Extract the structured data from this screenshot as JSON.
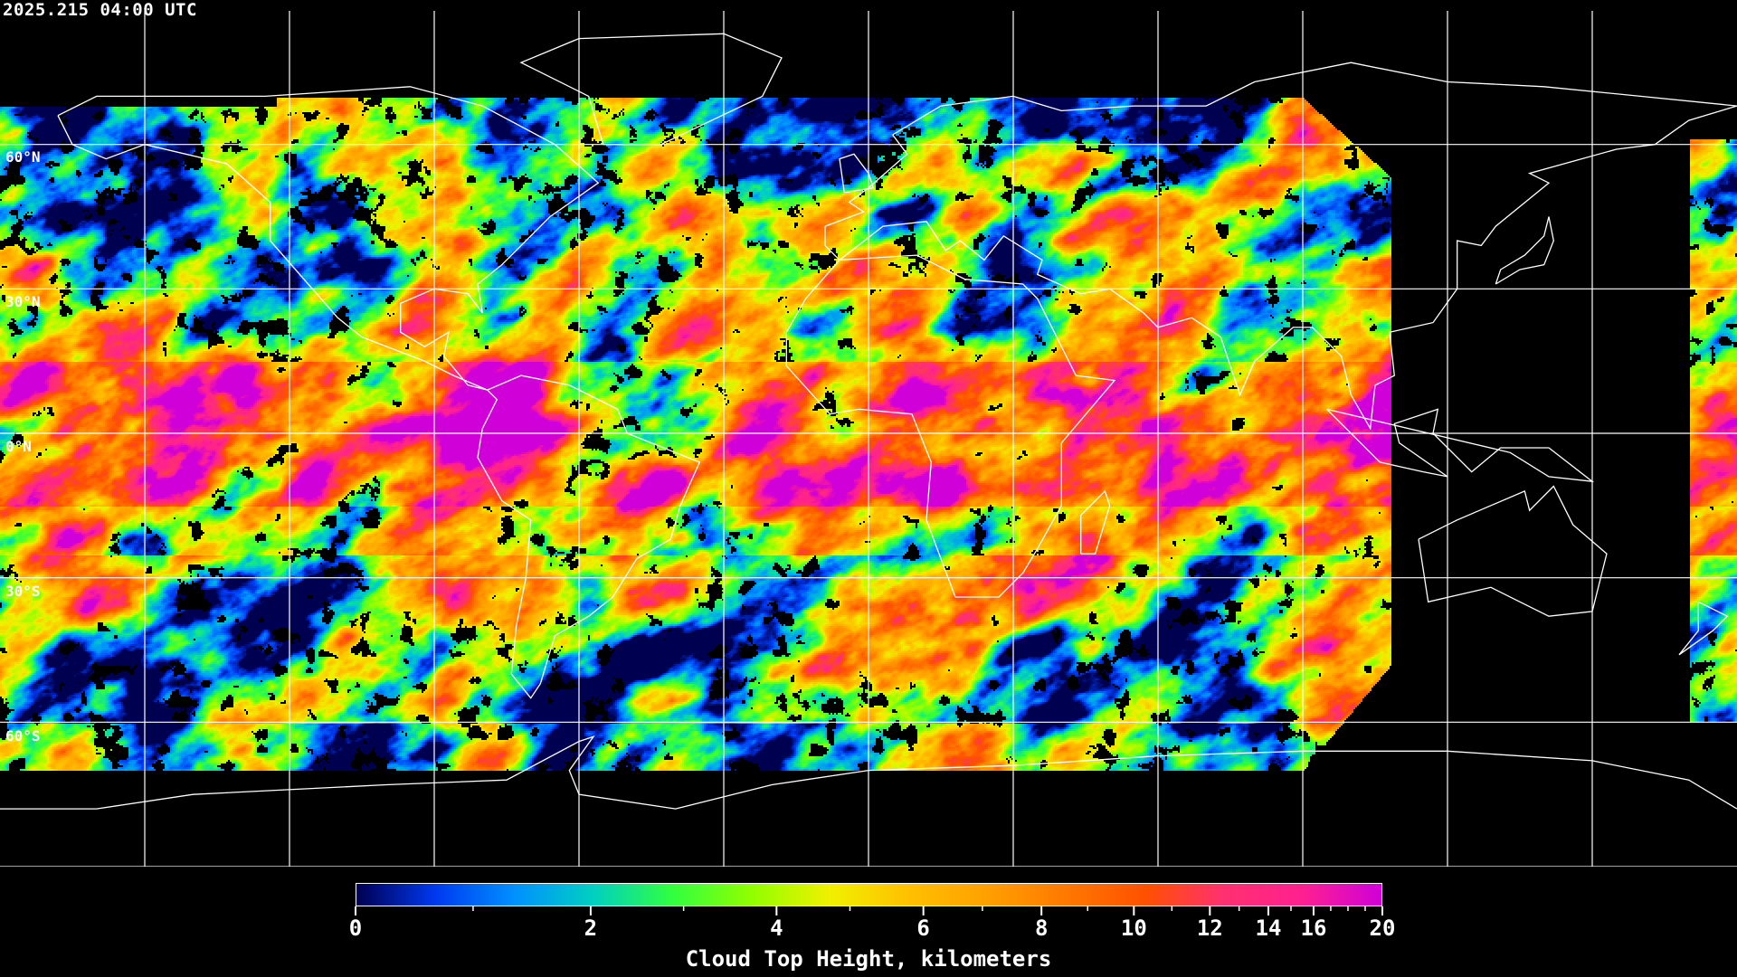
{
  "timestamp": "2025.215 04:00 UTC",
  "map": {
    "projection": "equirectangular",
    "center_longitude": 0,
    "grid_spacing_degrees": 30,
    "latitude_labels": [
      "60°N",
      "30°N",
      "0°N",
      "30°S",
      "60°S"
    ],
    "latitude_values": [
      60,
      30,
      0,
      -30,
      -60
    ],
    "coastline_color": "#ffffff",
    "grid_color": "#ffffff",
    "background_color": "#000000"
  },
  "colorbar": {
    "title": "Cloud Top Height, kilometers",
    "min": 0,
    "max": 20,
    "tick_labels": [
      "0",
      "2",
      "4",
      "6",
      "8",
      "10",
      "12",
      "14",
      "16",
      "20"
    ],
    "colors": [
      "#000050",
      "#0038f0",
      "#0090ff",
      "#00d0c0",
      "#30ff40",
      "#90ff00",
      "#f0f000",
      "#ffc000",
      "#ffa000",
      "#ff7800",
      "#ff5000",
      "#ff3070",
      "#ff2090",
      "#d000d8"
    ]
  }
}
